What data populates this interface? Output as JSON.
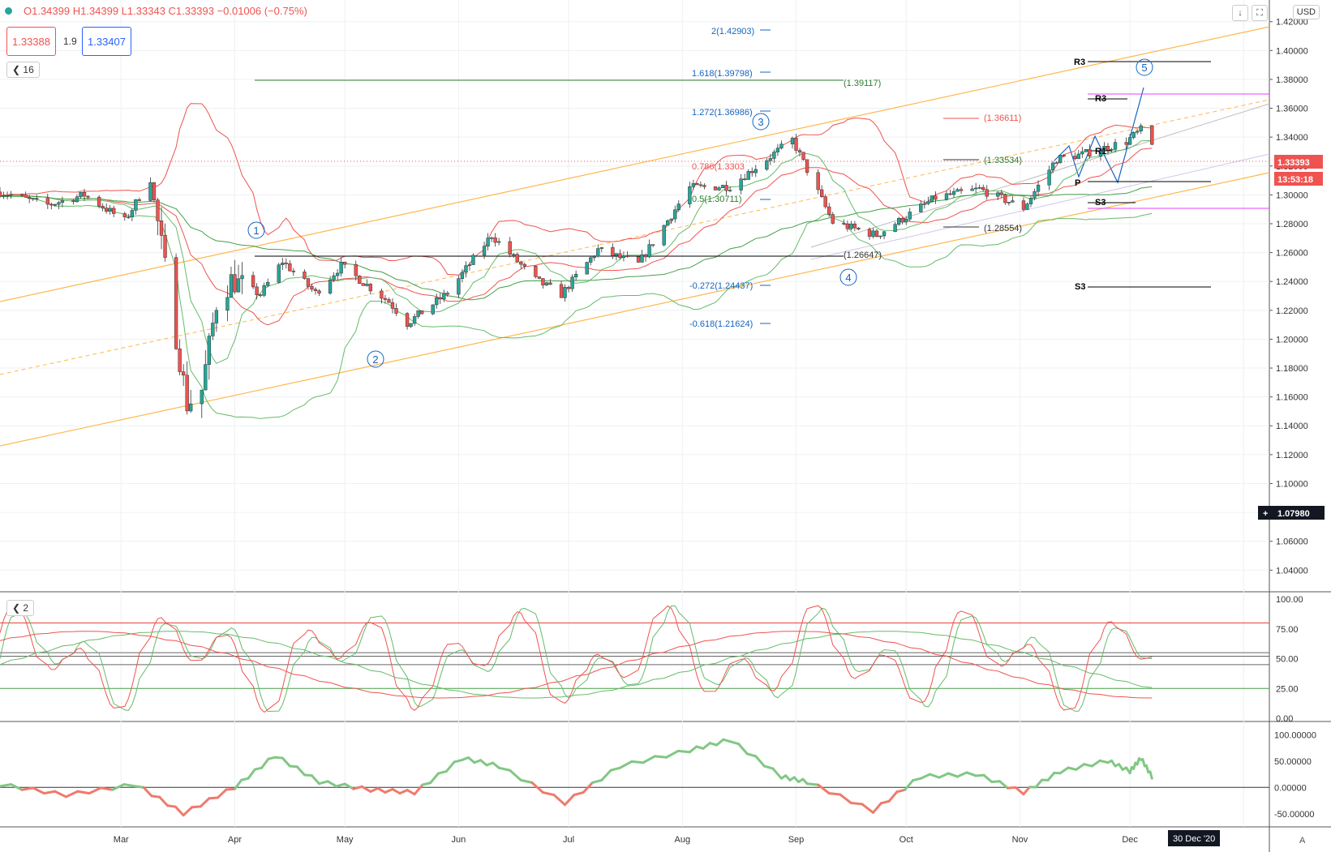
{
  "header": {
    "ohlc": "O1.34399 H1.34399 L1.33343 C1.33393 −0.01006 (−0.75%)",
    "bid": "1.33388",
    "spread": "1.9",
    "ask": "1.33407",
    "indicator_count": "16",
    "osc_count": "2",
    "currency": "USD",
    "down_arrow_icon": "↓",
    "fullscreen_icon": "⛶",
    "auto_label": "A"
  },
  "colors": {
    "up": "#26a69a",
    "down": "#ef5350",
    "pitch": "#ffb74d",
    "bb_red": "#ef5350",
    "bb_green": "#66bb6a",
    "fib": "#1565c0",
    "pivot": "#000000",
    "magenta": "#e040fb"
  },
  "price_axis": {
    "ticks": [
      "1.42000",
      "1.40000",
      "1.38000",
      "1.36000",
      "1.34000",
      "1.32000",
      "1.30000",
      "1.28000",
      "1.26000",
      "1.24000",
      "1.22000",
      "1.20000",
      "1.18000",
      "1.16000",
      "1.14000",
      "1.12000",
      "1.10000",
      "1.08000",
      "1.06000",
      "1.04000"
    ],
    "last_price": "1.33393",
    "countdown": "13:53:18",
    "crosshair": "1.07980"
  },
  "stoch_axis": {
    "ticks": [
      "100.00",
      "75.00",
      "50.00",
      "25.00",
      "0.00"
    ]
  },
  "cci_axis": {
    "ticks": [
      "100.00000",
      "50.00000",
      "0.00000",
      "-50.00000"
    ]
  },
  "time_axis": {
    "ticks": [
      "Mar",
      "Apr",
      "May",
      "Jun",
      "Jul",
      "Aug",
      "Sep",
      "Oct",
      "Nov",
      "Dec"
    ],
    "cursor": "30 Dec '20"
  },
  "annotations": {
    "fib_2": "2(1.42903)",
    "fib_1618": "1.618(1.39798)",
    "fib_1272": "1.272(1.36986)",
    "fib_0786": "0.786(1.3303",
    "fib_05": "0.5(1.30711)",
    "fib_m0272": "-0.272(1.24437)",
    "fib_m0618": "-0.618(1.21624)",
    "level_139117": "(1.39117)",
    "level_136611": "(1.36611)",
    "level_133534": "(1.33534)",
    "level_128554": "(1.28554)",
    "level_126647": "(1.26647)",
    "r3a": "R3",
    "r3b": "R3",
    "r1": "R1",
    "p": "P",
    "s3a": "S3",
    "s3b": "S3",
    "wave1": "1",
    "wave2": "2",
    "wave3": "3",
    "wave4": "4",
    "wave5": "5"
  },
  "chart_data": {
    "type": "candlestick",
    "x_range": [
      "2020-01-28",
      "2021-01-08"
    ],
    "y_range": [
      1.025,
      1.435
    ],
    "anchors": [
      [
        "2020-01-28",
        1.302
      ],
      [
        "2020-02-10",
        1.293
      ],
      [
        "2020-02-20",
        1.3
      ],
      [
        "2020-03-02",
        1.282
      ],
      [
        "2020-03-09",
        1.311
      ],
      [
        "2020-03-12",
        1.265
      ],
      [
        "2020-03-19",
        1.155
      ],
      [
        "2020-03-23",
        1.165
      ],
      [
        "2020-03-27",
        1.225
      ],
      [
        "2020-03-31",
        1.241
      ],
      [
        "2020-04-08",
        1.231
      ],
      [
        "2020-04-14",
        1.254
      ],
      [
        "2020-04-23",
        1.232
      ],
      [
        "2020-04-30",
        1.251
      ],
      [
        "2020-05-13",
        1.226
      ],
      [
        "2020-05-18",
        1.211
      ],
      [
        "2020-05-29",
        1.232
      ],
      [
        "2020-06-10",
        1.272
      ],
      [
        "2020-06-22",
        1.241
      ],
      [
        "2020-06-29",
        1.231
      ],
      [
        "2020-07-09",
        1.262
      ],
      [
        "2020-07-20",
        1.252
      ],
      [
        "2020-08-03",
        1.305
      ],
      [
        "2020-08-14",
        1.306
      ],
      [
        "2020-08-31",
        1.338
      ],
      [
        "2020-09-11",
        1.281
      ],
      [
        "2020-09-23",
        1.272
      ],
      [
        "2020-10-09",
        1.298
      ],
      [
        "2020-10-21",
        1.304
      ],
      [
        "2020-11-02",
        1.291
      ],
      [
        "2020-11-11",
        1.325
      ],
      [
        "2020-11-18",
        1.328
      ],
      [
        "2020-11-30",
        1.337
      ],
      [
        "2020-12-04",
        1.345
      ],
      [
        "2020-12-07",
        1.334
      ]
    ],
    "stoch_levels": [
      80,
      45,
      55,
      25
    ],
    "stoch_range": [
      0,
      100
    ],
    "cci_range": [
      -75,
      125
    ],
    "cci_anchors": [
      [
        "2020-01-28",
        5
      ],
      [
        "2020-02-15",
        -15
      ],
      [
        "2020-03-05",
        5
      ],
      [
        "2020-03-18",
        -50
      ],
      [
        "2020-04-01",
        0
      ],
      [
        "2020-04-12",
        60
      ],
      [
        "2020-04-24",
        10
      ],
      [
        "2020-05-08",
        -5
      ],
      [
        "2020-05-20",
        -10
      ],
      [
        "2020-06-02",
        55
      ],
      [
        "2020-06-12",
        40
      ],
      [
        "2020-06-30",
        -30
      ],
      [
        "2020-07-15",
        40
      ],
      [
        "2020-08-03",
        70
      ],
      [
        "2020-08-14",
        90
      ],
      [
        "2020-08-28",
        20
      ],
      [
        "2020-09-04",
        10
      ],
      [
        "2020-09-22",
        -45
      ],
      [
        "2020-10-05",
        20
      ],
      [
        "2020-10-20",
        25
      ],
      [
        "2020-11-02",
        -10
      ],
      [
        "2020-11-12",
        30
      ],
      [
        "2020-11-25",
        50
      ],
      [
        "2020-12-01",
        30
      ],
      [
        "2020-12-04",
        55
      ],
      [
        "2020-12-07",
        20
      ]
    ]
  }
}
